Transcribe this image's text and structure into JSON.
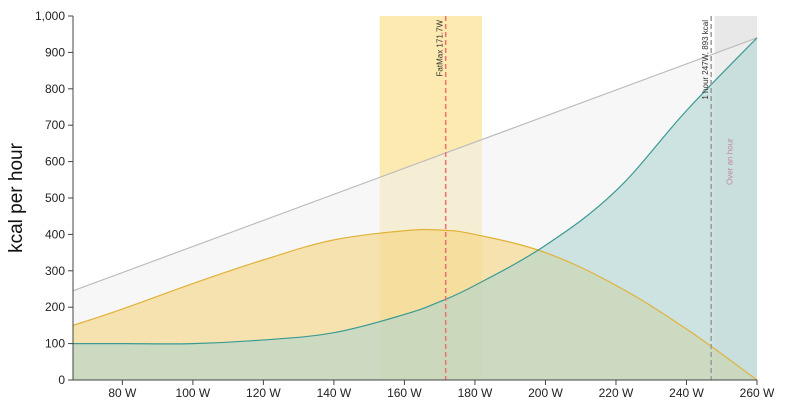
{
  "chart_data": {
    "type": "area",
    "title": "",
    "xlabel": "",
    "ylabel": "kcal per hour",
    "xlim": [
      66,
      260
    ],
    "ylim": [
      0,
      1000
    ],
    "grid": false,
    "x_ticks": [
      80,
      100,
      120,
      140,
      160,
      180,
      200,
      220,
      240,
      260
    ],
    "x_tick_labels": [
      "80 W",
      "100 W",
      "120 W",
      "140 W",
      "160 W",
      "180 W",
      "200 W",
      "220 W",
      "240 W",
      "260 W"
    ],
    "y_ticks": [
      0,
      100,
      200,
      300,
      400,
      500,
      600,
      700,
      800,
      900,
      1000
    ],
    "y_tick_labels": [
      "0",
      "100",
      "200",
      "300",
      "400",
      "500",
      "600",
      "700",
      "800",
      "900",
      "1,000"
    ],
    "series": [
      {
        "color": "#bdbdbd",
        "fill": "#f1f1f1",
        "x": [
          66,
          260
        ],
        "y": [
          245,
          940
        ]
      },
      {
        "color": "#e0b23a",
        "fill": "#f6d173",
        "x": [
          66,
          80,
          100,
          120,
          140,
          160,
          170,
          180,
          200,
          220,
          240,
          260
        ],
        "y": [
          150,
          195,
          265,
          330,
          385,
          410,
          412,
          400,
          350,
          260,
          140,
          0
        ]
      },
      {
        "color": "#3a9a93",
        "fill": "#a9d3d1",
        "x": [
          66,
          80,
          100,
          120,
          140,
          160,
          170,
          180,
          200,
          220,
          240,
          260
        ],
        "y": [
          100,
          100,
          100,
          110,
          130,
          180,
          215,
          260,
          370,
          520,
          740,
          940
        ]
      }
    ],
    "bands": [
      {
        "x0": 153,
        "x1": 182,
        "color": "#fde8a8"
      },
      {
        "x0": 248,
        "x1": 260,
        "color": "#e6e6e6"
      }
    ],
    "vlines": [
      {
        "x": 171.7,
        "color": "#ef6f6f",
        "label": "FatMax 171.7W"
      },
      {
        "x": 247,
        "color": "#9a9a9a",
        "label": "1 hour 247W, 893 kcal"
      }
    ],
    "annotations": [
      {
        "x": 253,
        "y": 600,
        "text": "Over an hour",
        "color": "#c08aa6"
      }
    ]
  }
}
